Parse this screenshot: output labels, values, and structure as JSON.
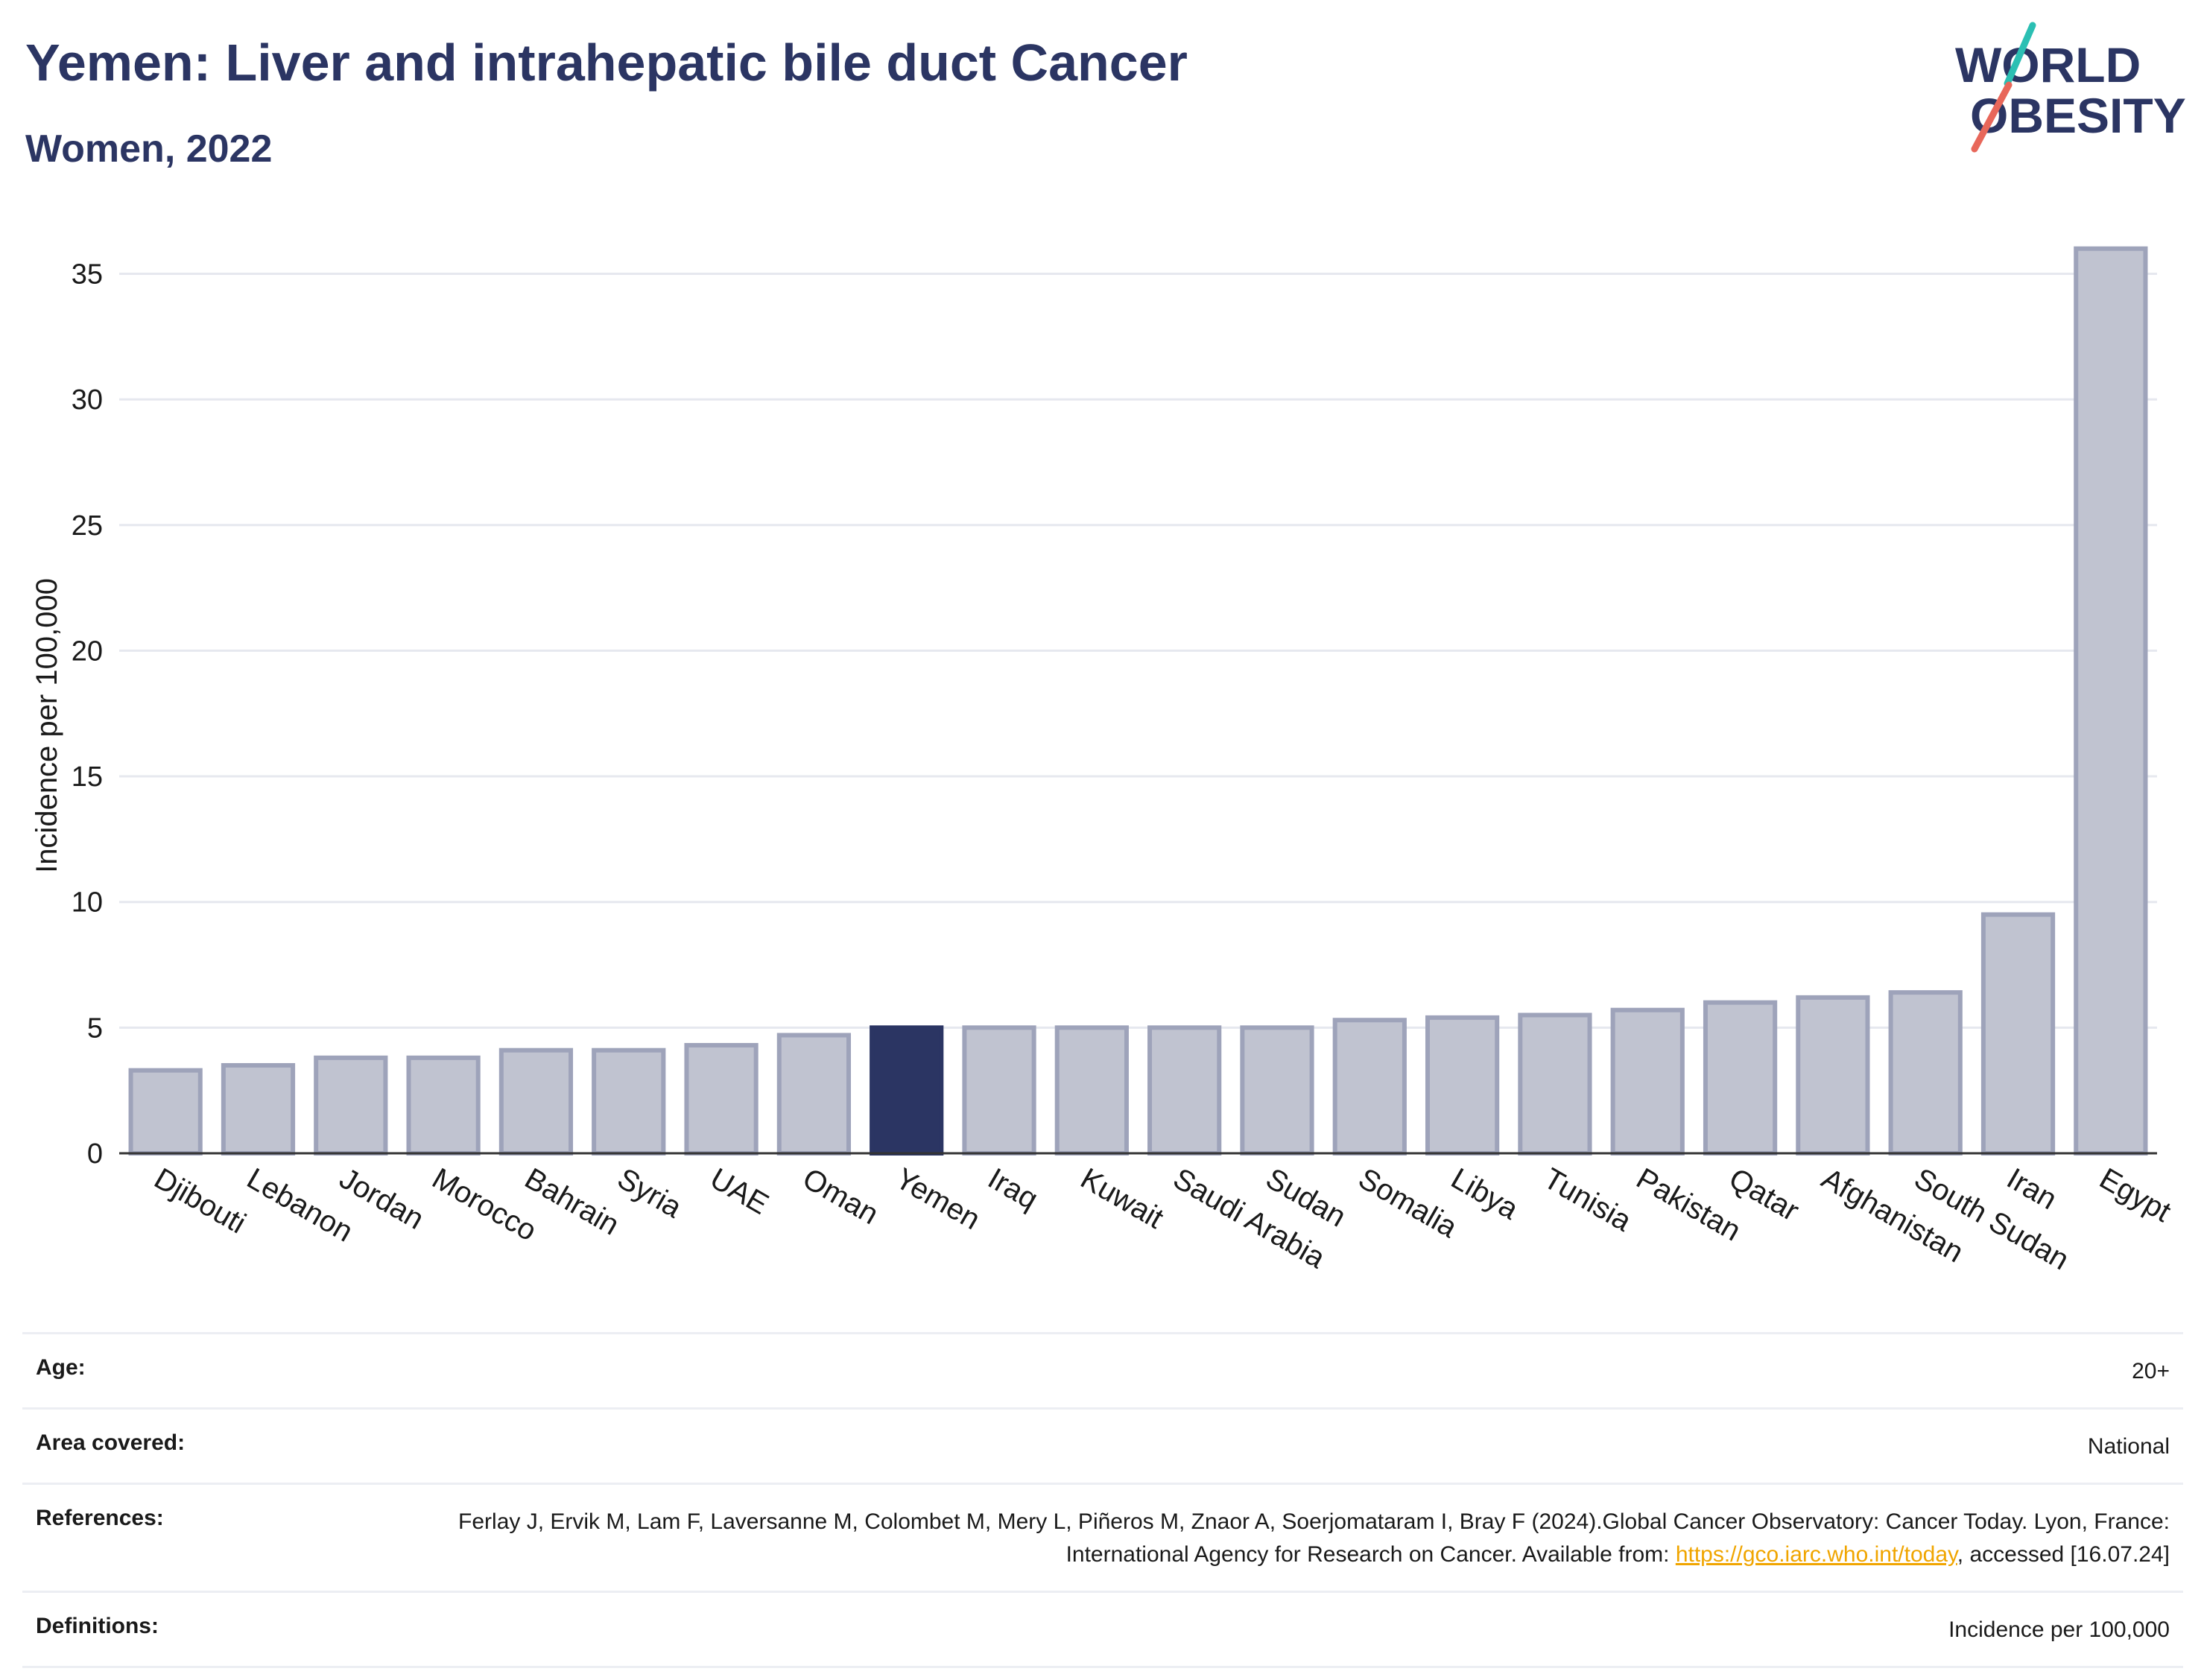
{
  "header": {
    "title": "Yemen: Liver and intrahepatic bile duct Cancer",
    "subtitle": "Women, 2022"
  },
  "logo": {
    "line1": "WORLD",
    "line2": "OBESITY",
    "text_color": "#2b3563",
    "slash_colors": [
      "#2bbfb3",
      "#e8675a"
    ]
  },
  "chart_data": {
    "type": "bar",
    "ylabel": "Incidence per 100,000",
    "xlabel": "",
    "ylim": [
      0,
      37
    ],
    "yticks": [
      0,
      5,
      10,
      15,
      20,
      25,
      30,
      35
    ],
    "grid": true,
    "categories": [
      "Djibouti",
      "Lebanon",
      "Jordan",
      "Morocco",
      "Bahrain",
      "Syria",
      "UAE",
      "Oman",
      "Yemen",
      "Iraq",
      "Kuwait",
      "Saudi Arabia",
      "Sudan",
      "Somalia",
      "Libya",
      "Tunisia",
      "Pakistan",
      "Qatar",
      "Afghanistan",
      "South Sudan",
      "Iran",
      "Egypt"
    ],
    "values": [
      3.3,
      3.5,
      3.8,
      3.8,
      4.1,
      4.1,
      4.3,
      4.7,
      5.0,
      5.0,
      5.0,
      5.0,
      5.0,
      5.3,
      5.4,
      5.5,
      5.7,
      6.0,
      6.2,
      6.4,
      9.5,
      36.0
    ],
    "highlight": "Yemen",
    "colors": {
      "bar": "#c0c3d0",
      "bar_edge": "#9ea3ba",
      "highlight": "#2b3563"
    }
  },
  "meta": {
    "age_label": "Age:",
    "age_value": "20+",
    "area_label": "Area covered:",
    "area_value": "National",
    "references_label": "References:",
    "references_text_1": "Ferlay J, Ervik M, Lam F, Laversanne M, Colombet M, Mery L, Piñeros M, Znaor A, Soerjomataram I, Bray F (2024).Global Cancer Observatory: Cancer Today. Lyon, France: International Agency for Research on Cancer. Available from: ",
    "references_link": "https://gco.iarc.who.int/today",
    "references_text_2": ", accessed [16.07.24]",
    "definitions_label": "Definitions:",
    "definitions_value": "Incidence per 100,000"
  }
}
